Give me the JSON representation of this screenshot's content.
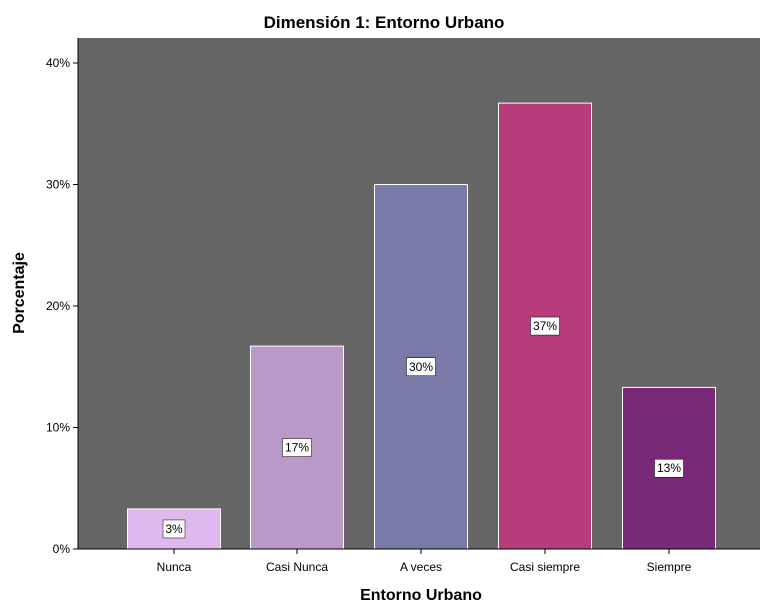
{
  "chart_data": {
    "type": "bar",
    "title": "Dimensión 1: Entorno Urbano",
    "xlabel": "Entorno Urbano",
    "ylabel": "Porcentaje",
    "categories": [
      "Nunca",
      "Casi Nunca",
      "A veces",
      "Casi siempre",
      "Siempre"
    ],
    "values": [
      3.3,
      16.7,
      30.0,
      36.7,
      13.3
    ],
    "data_labels": [
      "3%",
      "17%",
      "30%",
      "37%",
      "13%"
    ],
    "ylim": [
      0,
      42
    ],
    "yticks": [
      0,
      10,
      20,
      30,
      40
    ],
    "ytick_labels": [
      "0%",
      "10%",
      "20%",
      "30%",
      "40%"
    ],
    "grid": false,
    "colors": {
      "plot_background": "#666666",
      "bars": [
        "#e0b8f0",
        "#b899c8",
        "#7a7aa8",
        "#b83c7c",
        "#7a2878"
      ]
    }
  }
}
